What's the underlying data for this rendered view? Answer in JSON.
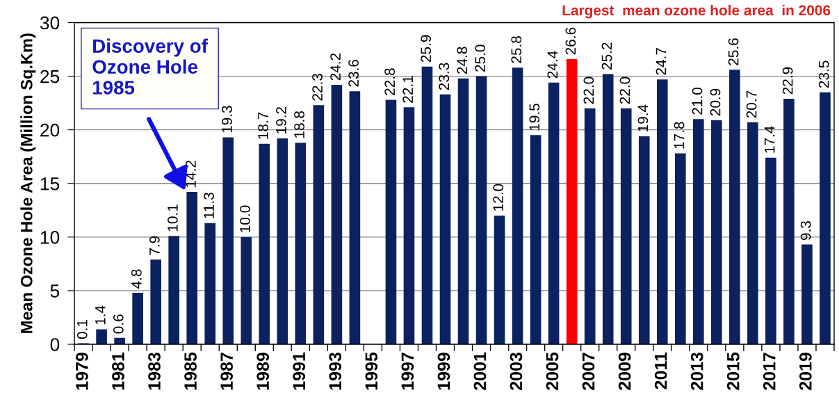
{
  "chart_data": {
    "type": "bar",
    "ylabel": "Mean Ozone Hole Area (Million Sq.Km)",
    "categories": [
      "1979",
      null,
      "1981",
      null,
      "1983",
      null,
      "1985",
      null,
      "1987",
      null,
      "1989",
      null,
      "1991",
      null,
      "1993",
      null,
      "1995",
      null,
      "1997",
      null,
      "1999",
      null,
      "2001",
      null,
      "2003",
      null,
      "2005",
      null,
      "2007",
      null,
      "2009",
      null,
      "2011",
      null,
      "2013",
      null,
      "2015",
      null,
      "2017",
      null,
      "2019",
      null
    ],
    "values": [
      0.1,
      1.4,
      0.6,
      4.8,
      7.9,
      10.1,
      14.2,
      11.3,
      19.3,
      10.0,
      18.7,
      19.2,
      18.8,
      22.3,
      24.2,
      23.6,
      null,
      22.8,
      22.1,
      25.9,
      23.3,
      24.8,
      25.0,
      12.0,
      25.8,
      19.5,
      24.4,
      26.6,
      22.0,
      25.2,
      22.0,
      19.4,
      24.7,
      17.8,
      21.0,
      20.9,
      25.6,
      20.7,
      17.4,
      22.9,
      9.3,
      23.5
    ],
    "value_labels": [
      "0.1",
      "1.4",
      "0.6",
      "4.8",
      "7.9",
      "10.1",
      "14.2",
      "11.3",
      "19.3",
      "10.0",
      "18.7",
      "19.2",
      "18.8",
      "22.3",
      "24.2",
      "23.6",
      null,
      "22.8",
      "22.1",
      "25.9",
      "23.3",
      "24.8",
      "25.0",
      "12.0",
      "25.8",
      "19.5",
      "24.4",
      "26.6",
      "22.0",
      "25.2",
      "22.0",
      "19.4",
      "24.7",
      "17.8",
      "21.0",
      "20.9",
      "25.6",
      "20.7",
      "17.4",
      "22.9",
      "9.3",
      "23.5"
    ],
    "colors": [
      "#0b2160",
      "#0b2160",
      "#0b2160",
      "#0b2160",
      "#0b2160",
      "#0b2160",
      "#0b2160",
      "#0b2160",
      "#0b2160",
      "#0b2160",
      "#0b2160",
      "#0b2160",
      "#0b2160",
      "#0b2160",
      "#0b2160",
      "#0b2160",
      "#0b2160",
      "#0b2160",
      "#0b2160",
      "#0b2160",
      "#0b2160",
      "#0b2160",
      "#0b2160",
      "#0b2160",
      "#0b2160",
      "#0b2160",
      "#0b2160",
      "#ff0000",
      "#0b2160",
      "#0b2160",
      "#0b2160",
      "#0b2160",
      "#0b2160",
      "#0b2160",
      "#0b2160",
      "#0b2160",
      "#0b2160",
      "#0b2160",
      "#0b2160",
      "#0b2160",
      "#0b2160",
      "#0b2160"
    ],
    "ylim": [
      0,
      30
    ],
    "yticks": [
      0,
      5,
      10,
      15,
      20,
      25,
      30
    ],
    "grid": "y",
    "annotations": [
      "Discovery of\nOzone Hole\n1985",
      "Largest  mean ozone hole area  in 2006"
    ]
  }
}
